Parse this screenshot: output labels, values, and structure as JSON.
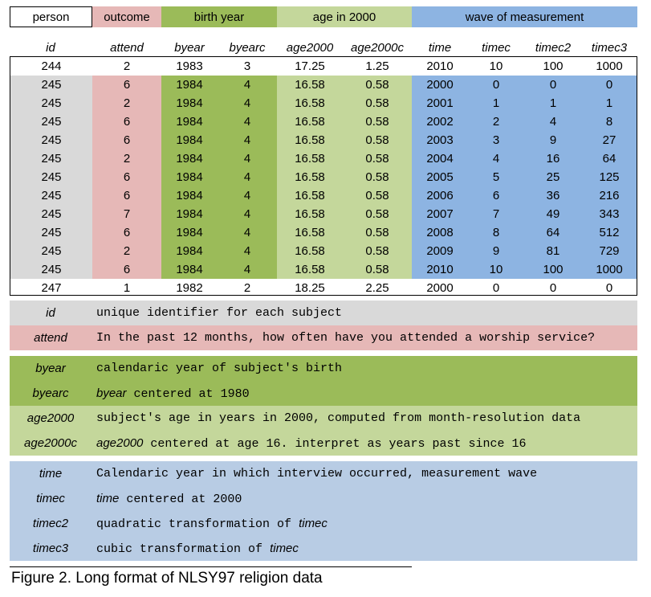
{
  "groups": {
    "person": "person",
    "outcome": "outcome",
    "birth_year": "birth year",
    "age_2000": "age in 2000",
    "wave": "wave of measurement"
  },
  "columns": [
    "id",
    "attend",
    "byear",
    "byearc",
    "age2000",
    "age2000c",
    "time",
    "timec",
    "timec2",
    "timec3"
  ],
  "rows": [
    [
      "244",
      "2",
      "1983",
      "3",
      "17.25",
      "1.25",
      "2010",
      "10",
      "100",
      "1000"
    ],
    [
      "245",
      "6",
      "1984",
      "4",
      "16.58",
      "0.58",
      "2000",
      "0",
      "0",
      "0"
    ],
    [
      "245",
      "2",
      "1984",
      "4",
      "16.58",
      "0.58",
      "2001",
      "1",
      "1",
      "1"
    ],
    [
      "245",
      "6",
      "1984",
      "4",
      "16.58",
      "0.58",
      "2002",
      "2",
      "4",
      "8"
    ],
    [
      "245",
      "6",
      "1984",
      "4",
      "16.58",
      "0.58",
      "2003",
      "3",
      "9",
      "27"
    ],
    [
      "245",
      "2",
      "1984",
      "4",
      "16.58",
      "0.58",
      "2004",
      "4",
      "16",
      "64"
    ],
    [
      "245",
      "6",
      "1984",
      "4",
      "16.58",
      "0.58",
      "2005",
      "5",
      "25",
      "125"
    ],
    [
      "245",
      "6",
      "1984",
      "4",
      "16.58",
      "0.58",
      "2006",
      "6",
      "36",
      "216"
    ],
    [
      "245",
      "7",
      "1984",
      "4",
      "16.58",
      "0.58",
      "2007",
      "7",
      "49",
      "343"
    ],
    [
      "245",
      "6",
      "1984",
      "4",
      "16.58",
      "0.58",
      "2008",
      "8",
      "64",
      "512"
    ],
    [
      "245",
      "2",
      "1984",
      "4",
      "16.58",
      "0.58",
      "2009",
      "9",
      "81",
      "729"
    ],
    [
      "245",
      "6",
      "1984",
      "4",
      "16.58",
      "0.58",
      "2010",
      "10",
      "100",
      "1000"
    ],
    [
      "247",
      "1",
      "1982",
      "2",
      "18.25",
      "2.25",
      "2000",
      "0",
      "0",
      "0"
    ]
  ],
  "legend": {
    "id": {
      "term": "id",
      "desc": "unique identifier for each subject"
    },
    "attend": {
      "term": "attend",
      "desc": "In the past 12 months, how often have you attended a worship service?"
    },
    "byear": {
      "term": "byear",
      "desc": "calendaric year of subject's birth"
    },
    "byearc": {
      "term": "byearc",
      "desc_ref": "byear",
      "desc": "centered at 1980"
    },
    "age2000": {
      "term": "age2000",
      "desc": "subject's age in years in 2000, computed from month-resolution data"
    },
    "age2000c": {
      "term": "age2000c",
      "desc_ref": "age2000",
      "desc": "centered at age 16. interpret as years past since 16"
    },
    "time": {
      "term": "time",
      "desc": "Calendaric year in which interview occurred, measurement wave"
    },
    "timec": {
      "term": "timec",
      "desc_ref": "time",
      "desc": "centered at 2000"
    },
    "timec2": {
      "term": "timec2",
      "desc": "quadratic transformation of",
      "desc_ref": "timec"
    },
    "timec3": {
      "term": "timec3",
      "desc": "cubic transformation of",
      "desc_ref": "timec"
    }
  },
  "caption": "Figure 2. Long format of  NLSY97 religion data",
  "colors": {
    "person": "#d9d9d9",
    "outcome": "#e6b8b7",
    "birth_year": "#9bbb59",
    "age_2000": "#c4d79b",
    "wave": "#8db4e2",
    "wave_legend": "#b8cce4"
  }
}
